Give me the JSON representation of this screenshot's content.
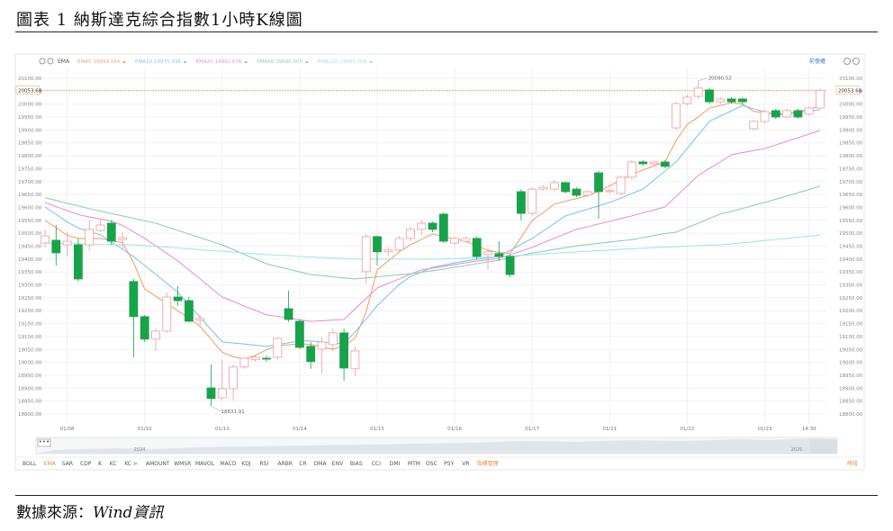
{
  "document": {
    "title": "圖表 1 納斯達克綜合指數1小時K線圖"
  },
  "source": {
    "label": "數據來源：",
    "value": "Wind資訊"
  },
  "chart_data": {
    "type": "candlestick",
    "indicator": "EMA",
    "adjust_label": "前復權",
    "up_color": "#f39a9a",
    "down_color": "#17a34a",
    "grid": true,
    "categories": [
      null,
      null,
      "01/08",
      null,
      null,
      null,
      null,
      null,
      null,
      "01/10",
      null,
      null,
      null,
      null,
      null,
      null,
      "01/13",
      null,
      null,
      null,
      null,
      null,
      null,
      "01/14",
      null,
      null,
      null,
      null,
      null,
      null,
      "01/15",
      null,
      null,
      null,
      null,
      null,
      null,
      "01/16",
      null,
      null,
      null,
      null,
      null,
      null,
      "01/17",
      null,
      null,
      null,
      null,
      null,
      null,
      "01/21",
      null,
      null,
      null,
      null,
      null,
      null,
      "01/22",
      null,
      null,
      null,
      null,
      null,
      null,
      "01/23",
      null,
      null,
      null,
      "14:30",
      null
    ],
    "open": [
      19462,
      19473,
      19455,
      19455,
      19455,
      19511,
      19539,
      19476,
      19313,
      19177,
      19090,
      19121,
      19253,
      19239,
      19163,
      18901,
      18863,
      18898,
      18982,
      19010,
      19016,
      19020,
      19208,
      19159,
      19062,
      19051,
      19069,
      19114,
      18975,
      19351,
      19487,
      19428,
      19435,
      19480,
      19515,
      19539,
      19574,
      19462,
      19469,
      19480,
      19417,
      19421,
      19410,
      19661,
      19577,
      19671,
      19671,
      19696,
      19671,
      19647,
      19734,
      19661,
      19654,
      19717,
      19776,
      19769,
      19776,
      19908,
      20002,
      20030,
      20055,
      20009,
      20020,
      20020,
      19905,
      19933,
      19975,
      19950,
      19975,
      19961,
      19985
    ],
    "high": [
      19515,
      19532,
      19504,
      19480,
      19550,
      19550,
      19550,
      19504,
      19323,
      19184,
      19131,
      19271,
      19295,
      19253,
      19184,
      18992,
      19010,
      18992,
      19020,
      19027,
      19027,
      19097,
      19278,
      19166,
      19079,
      19097,
      19131,
      19131,
      19062,
      19497,
      19490,
      19445,
      19490,
      19525,
      19550,
      19545,
      19581,
      19487,
      19487,
      19487,
      19442,
      19469,
      19417,
      19671,
      19678,
      19685,
      19706,
      19700,
      19678,
      19668,
      19741,
      19671,
      19724,
      19783,
      19783,
      19783,
      19783,
      20010,
      20035,
      20090.52,
      20062,
      20027,
      20027,
      20025,
      19940,
      19978,
      19982,
      19982,
      19982,
      19992,
      20060
    ],
    "low": [
      19445,
      19375,
      19410,
      19313,
      19435,
      19504,
      19455,
      19435,
      19020,
      19079,
      19044,
      19114,
      19219,
      19156,
      19142,
      18831.91,
      18853,
      18853,
      18975,
      19003,
      19003,
      19010,
      19156,
      19051,
      18975,
      18957,
      19044,
      18929,
      18947,
      19306,
      19375,
      19410,
      19428,
      19469,
      19490,
      19504,
      19462,
      19455,
      19462,
      19400,
      19358,
      19393,
      19330,
      19550,
      19570,
      19665,
      19665,
      19654,
      19640,
      19640,
      19556,
      19654,
      19647,
      19706,
      19762,
      19762,
      19752,
      19900,
      19995,
      20020,
      20002,
      20002,
      20002,
      20000,
      19898,
      19925,
      19943,
      19943,
      19943,
      19955,
      19978
    ],
    "close": [
      19490,
      19424,
      19469,
      19323,
      19515,
      19532,
      19469,
      19483,
      19177,
      19090,
      19121,
      19253,
      19239,
      19159,
      19170,
      18860,
      18898,
      18982,
      19016,
      19020,
      19013,
      19093,
      19166,
      19058,
      19003,
      19079,
      19114,
      18978,
      19044,
      19487,
      19428,
      19435,
      19480,
      19515,
      19539,
      19515,
      19469,
      19480,
      19480,
      19410,
      19428,
      19410,
      19340,
      19577,
      19671,
      19678,
      19696,
      19661,
      19647,
      19661,
      19661,
      19665,
      19717,
      19776,
      19769,
      19776,
      19759,
      20002,
      20027,
      20062,
      20009,
      20020,
      20009,
      20009,
      19933,
      19971,
      19950,
      19975,
      19950,
      19985,
      20053.68
    ],
    "series": [
      {
        "name": "EMA5",
        "color": "#f5a26b",
        "legend_value": 19999.164,
        "values": [
          19550,
          19521,
          19492,
          19480,
          19480,
          19480,
          19471,
          19464,
          19386,
          19284,
          19256,
          19228,
          19199,
          19172,
          19139,
          19090,
          19039,
          19022,
          19013,
          19027,
          19049,
          19064,
          19068,
          19071,
          19069,
          19060,
          19051,
          19065,
          19094,
          19195,
          19358,
          19393,
          19428,
          19455,
          19476,
          19497,
          19488,
          19478,
          19469,
          19451,
          19434,
          19426,
          19422,
          19484,
          19550,
          19580,
          19613,
          19624,
          19634,
          19646,
          19662,
          19684,
          19706,
          19728,
          19745,
          19761,
          19776,
          19860,
          19921,
          19950,
          19985,
          19995,
          20006,
          20000,
          19972,
          19966,
          19963,
          19962,
          19971,
          19981,
          19992
        ]
      },
      {
        "name": "EMA10",
        "color": "#7cc8ee",
        "legend_value": 19975.338,
        "values": [
          19602,
          19573,
          19544,
          19520,
          19506,
          19494,
          19466,
          19438,
          19410,
          19375,
          19341,
          19306,
          19271,
          19223,
          19175,
          19127,
          19079,
          19075,
          19071,
          19066,
          19062,
          19069,
          19076,
          19083,
          19083,
          19079,
          19075,
          19071,
          19118,
          19168,
          19219,
          19261,
          19302,
          19332,
          19350,
          19368,
          19376,
          19385,
          19393,
          19399,
          19404,
          19410,
          19433,
          19457,
          19480,
          19509,
          19538,
          19567,
          19580,
          19593,
          19606,
          19619,
          19636,
          19654,
          19671,
          19706,
          19741,
          19776,
          19828,
          19881,
          19933,
          19954,
          19974,
          19995,
          19982,
          19970,
          19957,
          19962,
          19967,
          19973,
          19978
        ]
      },
      {
        "name": "EMA20",
        "color": "#ee8fd6",
        "legend_value": 19891.676,
        "values": [
          19619,
          19603,
          19588,
          19572,
          19563,
          19555,
          19547,
          19530,
          19505,
          19480,
          19451,
          19422,
          19393,
          19358,
          19323,
          19288,
          19253,
          19236,
          19218,
          19201,
          19184,
          19178,
          19172,
          19165,
          19159,
          19161,
          19164,
          19166,
          19207,
          19247,
          19288,
          19306,
          19323,
          19341,
          19358,
          19365,
          19372,
          19379,
          19386,
          19392,
          19397,
          19403,
          19417,
          19431,
          19445,
          19463,
          19480,
          19498,
          19515,
          19525,
          19536,
          19546,
          19557,
          19567,
          19579,
          19590,
          19602,
          19643,
          19683,
          19724,
          19751,
          19777,
          19804,
          19812,
          19820,
          19828,
          19842,
          19856,
          19870,
          19884,
          19898
        ]
      },
      {
        "name": "EMA60",
        "color": "#8fd1a9",
        "legend_value": 19690.505,
        "values": [
          19637,
          19627,
          19616,
          19606,
          19595,
          19586,
          19576,
          19567,
          19558,
          19548,
          19539,
          19525,
          19511,
          19497,
          19483,
          19469,
          19455,
          19437,
          19418,
          19400,
          19382,
          19371,
          19361,
          19350,
          19340,
          19336,
          19331,
          19327,
          19323,
          19327,
          19331,
          19335,
          19339,
          19343,
          19349,
          19355,
          19361,
          19368,
          19375,
          19382,
          19389,
          19396,
          19405,
          19414,
          19423,
          19430,
          19437,
          19444,
          19451,
          19456,
          19461,
          19466,
          19471,
          19475,
          19483,
          19491,
          19499,
          19504,
          19522,
          19539,
          19557,
          19574,
          19585,
          19596,
          19608,
          19619,
          19632,
          19644,
          19657,
          19669,
          19682
        ]
      },
      {
        "name": "EMA120",
        "color": "#9fe6ef",
        "legend_value": 19495.268,
        "values": [
          19462,
          19461,
          19460,
          19459,
          19458,
          19457,
          19456,
          19456,
          19455,
          19452,
          19449,
          19446,
          19443,
          19440,
          19436,
          19433,
          19430,
          19427,
          19423,
          19420,
          19417,
          19415,
          19413,
          19410,
          19408,
          19406,
          19404,
          19402,
          19400,
          19400,
          19400,
          19400,
          19400,
          19400,
          19400,
          19400,
          19400,
          19402,
          19404,
          19406,
          19408,
          19410,
          19412,
          19414,
          19417,
          19420,
          19422,
          19425,
          19428,
          19430,
          19433,
          19435,
          19438,
          19440,
          19442,
          19444,
          19446,
          19448,
          19450,
          19452,
          19454,
          19455,
          19459,
          19463,
          19467,
          19472,
          19476,
          19480,
          19485,
          19489,
          19493
        ]
      }
    ],
    "last_price": {
      "value": 20053.68,
      "label": "20053.68"
    },
    "annotations": [
      {
        "value": 20090.52,
        "label": "20090.52"
      },
      {
        "value": 18831.91,
        "label": "18831.91"
      }
    ],
    "navigator_labels": [
      "2024",
      "2025"
    ],
    "toolbar": [
      "BOLL",
      "EMA",
      "SAR",
      "CDP",
      "K",
      "KC",
      "KC >",
      "AMOUNT",
      "WMSR",
      "MAVOL",
      "MACD",
      "KDJ",
      "RSI",
      "ARBR",
      "CR",
      "DMA",
      "ENV",
      "BIAS",
      "CCI",
      "DMI",
      "MTM",
      "OSC",
      "PSY",
      "VR",
      "指標管理"
    ],
    "period_label": "時段",
    "ylim": [
      18800,
      20100
    ],
    "yticks": [
      {
        "value": 18800,
        "label": "18800.00"
      },
      {
        "value": 18850,
        "label": "18850.00"
      },
      {
        "value": 18900,
        "label": "18900.00"
      },
      {
        "value": 18950,
        "label": "18950.00"
      },
      {
        "value": 19000,
        "label": "19000.00"
      },
      {
        "value": 19050,
        "label": "19050.00"
      },
      {
        "value": 19100,
        "label": "19100.00"
      },
      {
        "value": 19150,
        "label": "19150.00"
      },
      {
        "value": 19200,
        "label": "19200.00"
      },
      {
        "value": 19250,
        "label": "19250.00"
      },
      {
        "value": 19300,
        "label": "19300.00"
      },
      {
        "value": 19350,
        "label": "19350.00"
      },
      {
        "value": 19400,
        "label": "19400.00"
      },
      {
        "value": 19450,
        "label": "19450.00"
      },
      {
        "value": 19500,
        "label": "19500.00"
      },
      {
        "value": 19550,
        "label": "19550.00"
      },
      {
        "value": 19600,
        "label": "19600.00"
      },
      {
        "value": 19650,
        "label": "19650.00"
      },
      {
        "value": 19700,
        "label": "19700.00"
      },
      {
        "value": 19750,
        "label": "19750.00"
      },
      {
        "value": 19800,
        "label": "19800.00"
      },
      {
        "value": 19850,
        "label": "19850.00"
      },
      {
        "value": 19900,
        "label": "19900.00"
      },
      {
        "value": 19950,
        "label": "19950.00"
      },
      {
        "value": 20000,
        "label": "20000.00"
      },
      {
        "value": 20050,
        "label": "20050.00"
      },
      {
        "value": 20100,
        "label": "20100.00"
      }
    ]
  }
}
